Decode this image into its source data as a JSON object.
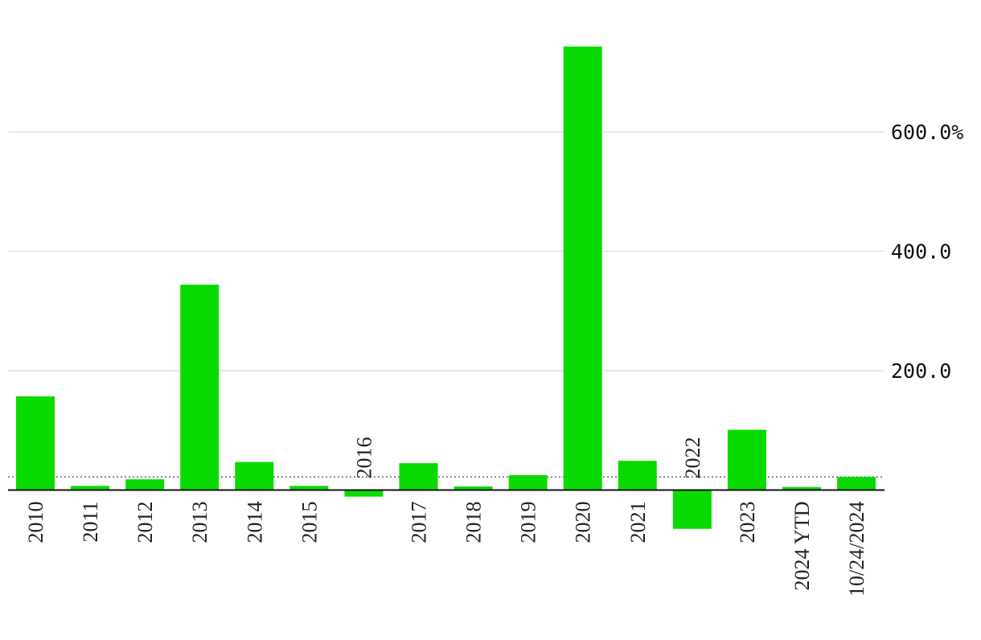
{
  "chart_data": {
    "type": "bar",
    "title": "",
    "xlabel": "",
    "ylabel": "",
    "ylim": [
      -65,
      745
    ],
    "grid": true,
    "legend": "none",
    "bar_color": "#09db00",
    "yticks": [
      {
        "value": 200,
        "label": "200.0"
      },
      {
        "value": 400,
        "label": "400.0"
      },
      {
        "value": 600,
        "label": "600.0%"
      }
    ],
    "reference_line": {
      "value": 22,
      "style": "dotted"
    },
    "categories": [
      "2010",
      "2011",
      "2012",
      "2013",
      "2014",
      "2015",
      "2016",
      "2017",
      "2018",
      "2019",
      "2020",
      "2021",
      "2022",
      "2023",
      "2024 YTD",
      "10/24/2024"
    ],
    "series": [
      {
        "values": [
          157,
          7,
          18,
          344,
          47,
          7,
          -11,
          45,
          6,
          25,
          743,
          49,
          -65,
          101,
          5,
          22
        ]
      }
    ]
  }
}
